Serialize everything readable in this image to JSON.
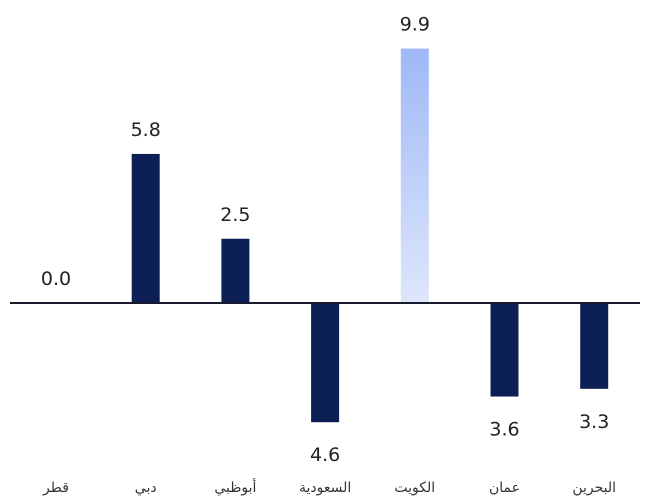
{
  "chart_data": {
    "type": "bar",
    "categories": [
      "قطر",
      "دبي",
      "أبوظبي",
      "السعودية",
      "الكويت",
      "عمان",
      "البحرين"
    ],
    "values": [
      0.0,
      5.8,
      2.5,
      -4.6,
      9.9,
      -3.6,
      -3.3
    ],
    "value_labels": [
      "0.0",
      "5.8",
      "2.5",
      "4.6",
      "9.9",
      "3.6",
      "3.3"
    ],
    "highlight_index": 4,
    "ylim": [
      -6.5,
      10.5
    ],
    "grid": false,
    "legend": "none",
    "colors": {
      "bar": "#0b1f55",
      "highlight_top": "#9fb8f6",
      "highlight_bottom": "#dde6fc",
      "axis": "#1a1a2e"
    }
  }
}
